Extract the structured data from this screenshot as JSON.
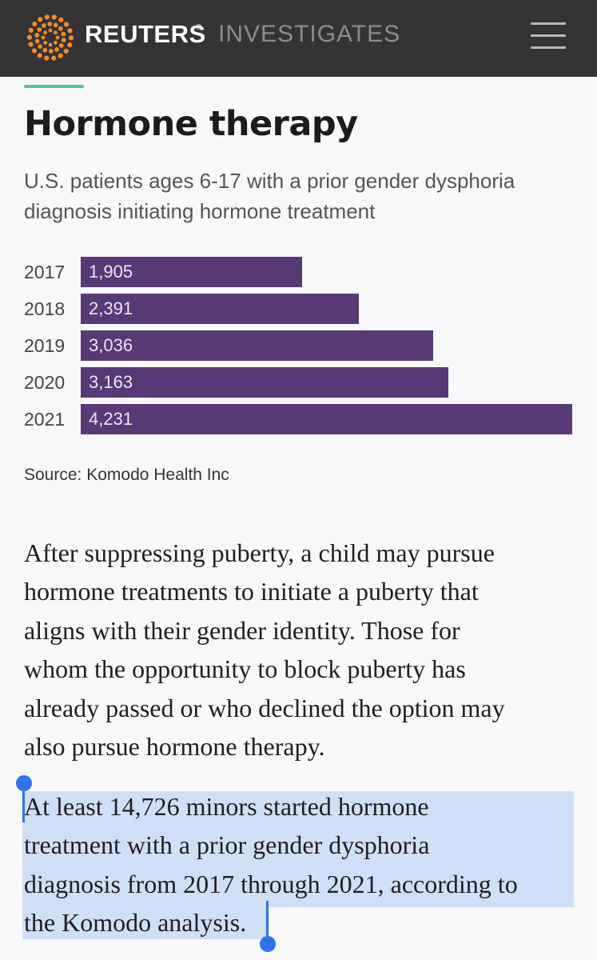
{
  "header": {
    "brand": "REUTERS",
    "brand_mark": "®",
    "section": "INVESTIGATES",
    "menu_icon": "hamburger-menu-icon"
  },
  "colors": {
    "header_bg": "#343434",
    "accent": "#4ec990",
    "bar": "#573a75",
    "logo": "#f18a2b",
    "selection": "#cfdff8",
    "selection_handle": "#2f74e8"
  },
  "chart_data": {
    "type": "bar",
    "orientation": "horizontal",
    "title": "Hormone therapy",
    "subtitle": "U.S. patients ages 6-17 with a prior gender dysphoria diagnosis initiating hormone treatment",
    "categories": [
      "2017",
      "2018",
      "2019",
      "2020",
      "2021"
    ],
    "values": [
      1905,
      2391,
      3036,
      3163,
      4231
    ],
    "value_labels": [
      "1,905",
      "2,391",
      "3,036",
      "3,163",
      "4,231"
    ],
    "xlim": [
      0,
      4231
    ],
    "source": "Source: Komodo Health Inc"
  },
  "article": {
    "paragraph1": [
      "After suppressing puberty, a child may pursue",
      "hormone treatments to initiate a puberty that",
      "aligns with their gender identity. Those for",
      "whom the opportunity to block puberty has",
      "already passed or who declined the option may",
      "also pursue hormone therapy."
    ],
    "paragraph2": [
      "At least 14,726 minors started hormone",
      "treatment with a prior gender dysphoria",
      "diagnosis from 2017 through 2021, according to",
      "the Komodo analysis."
    ]
  }
}
